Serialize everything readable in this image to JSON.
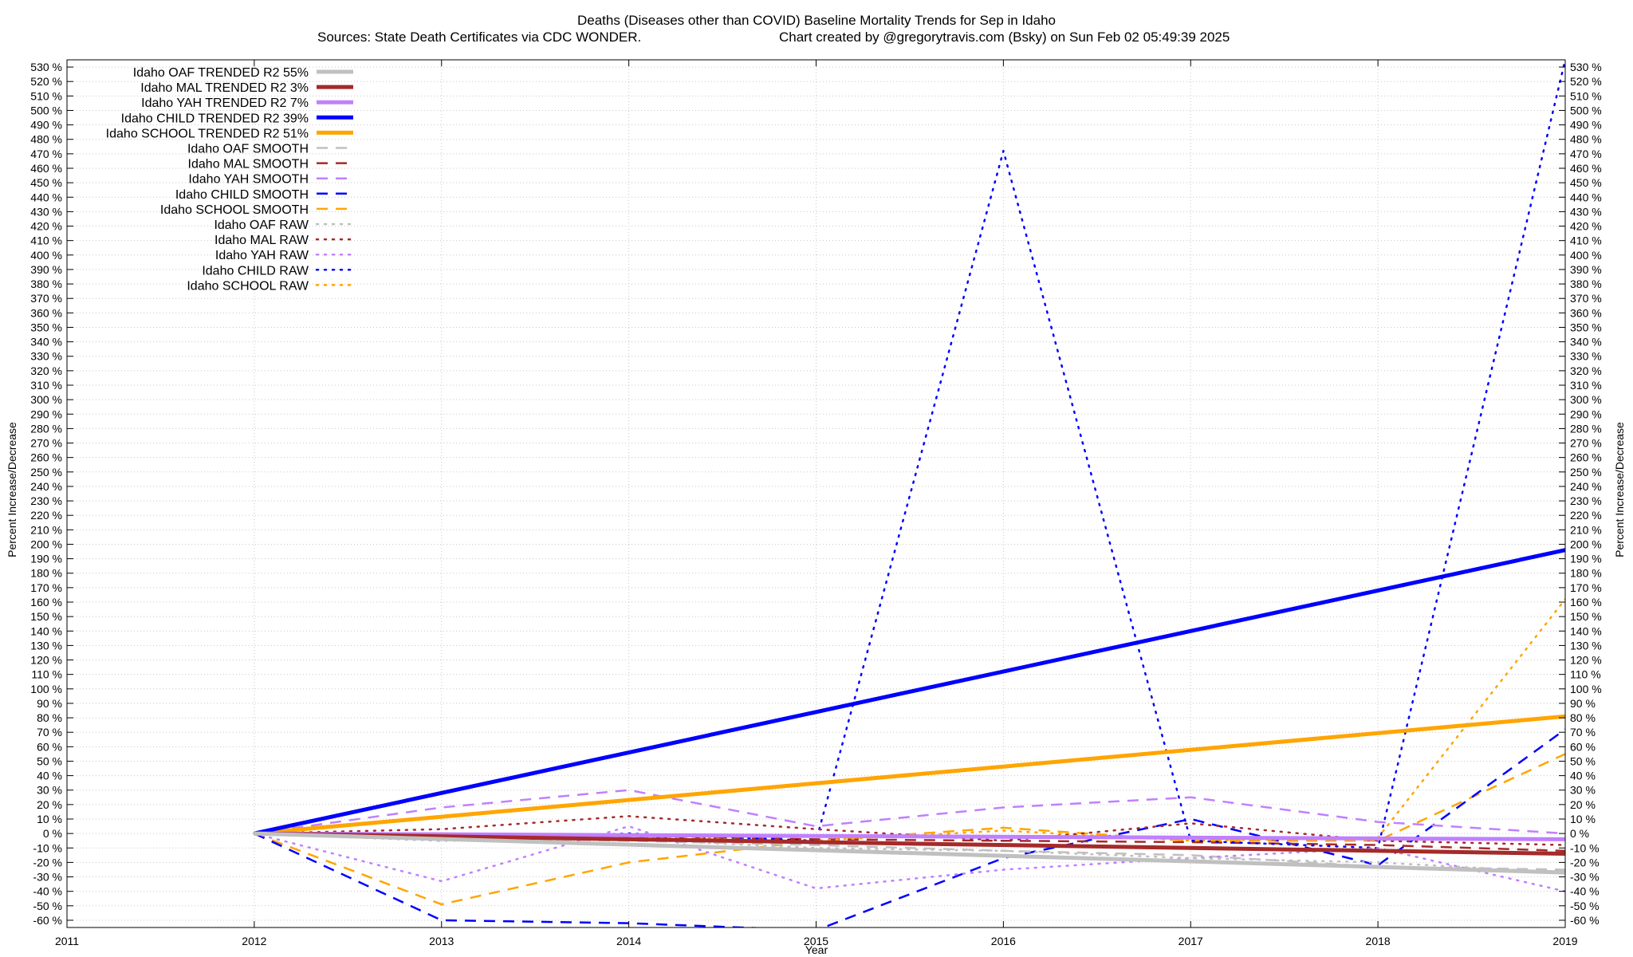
{
  "chart_data": {
    "type": "line",
    "title": "Deaths (Diseases other than COVID)  Baseline Mortality Trends for Sep in Idaho",
    "subtitle_left": "Sources: State Death Certificates via CDC WONDER.",
    "subtitle_right": "Chart created by @gregorytravis.com (Bsky) on Sun Feb 02 05:49:39 2025",
    "xlabel": "Year",
    "ylabel": "Percent Increase/Decrease",
    "ylabel_right": "Percent Increase/Decrease",
    "xlim": [
      2011,
      2019
    ],
    "ylim": [
      -65,
      535
    ],
    "x_ticks": [
      "2011",
      "2012",
      "2013",
      "2014",
      "2015",
      "2016",
      "2017",
      "2018",
      "2019"
    ],
    "y_tick_values": [
      -60,
      -50,
      -40,
      -30,
      -20,
      -10,
      0,
      10,
      20,
      30,
      40,
      50,
      60,
      70,
      80,
      90,
      100,
      110,
      120,
      130,
      140,
      150,
      160,
      170,
      180,
      190,
      200,
      210,
      220,
      230,
      240,
      250,
      260,
      270,
      280,
      290,
      300,
      310,
      320,
      330,
      340,
      350,
      360,
      370,
      380,
      390,
      400,
      410,
      420,
      430,
      440,
      450,
      460,
      470,
      480,
      490,
      500,
      510,
      520,
      530
    ],
    "y_tick_suffix": " %",
    "grid": true,
    "legend_position": "top-left",
    "series": [
      {
        "name": "Idaho OAF TRENDED R2  55%",
        "style": "solid",
        "color": "#c0c0c0",
        "width": 5,
        "x": [
          2012,
          2019
        ],
        "y": [
          0,
          -27
        ]
      },
      {
        "name": "Idaho MAL TRENDED R2   3%",
        "style": "solid",
        "color": "#a52a2a",
        "width": 5,
        "x": [
          2012,
          2019
        ],
        "y": [
          0,
          -14
        ]
      },
      {
        "name": "Idaho YAH TRENDED R2   7%",
        "style": "solid",
        "color": "#c080ff",
        "width": 5,
        "x": [
          2012,
          2019
        ],
        "y": [
          0,
          -4
        ]
      },
      {
        "name": "Idaho CHILD TRENDED R2  39%",
        "style": "solid",
        "color": "#0000ff",
        "width": 5,
        "x": [
          2012,
          2019
        ],
        "y": [
          0,
          196
        ]
      },
      {
        "name": "Idaho SCHOOL TRENDED R2  51%",
        "style": "solid",
        "color": "#ffa500",
        "width": 5,
        "x": [
          2012,
          2019
        ],
        "y": [
          0,
          81
        ]
      },
      {
        "name": "Idaho OAF SMOOTH",
        "style": "dashed",
        "color": "#c0c0c0",
        "width": 2.5,
        "x": [
          2012,
          2013,
          2014,
          2015,
          2016,
          2017,
          2018,
          2019
        ],
        "y": [
          0,
          -3,
          -5,
          -8,
          -12,
          -15,
          -23,
          -25
        ]
      },
      {
        "name": "Idaho MAL SMOOTH",
        "style": "dashed",
        "color": "#a52a2a",
        "width": 2.5,
        "x": [
          2012,
          2013,
          2014,
          2015,
          2016,
          2017,
          2018,
          2019
        ],
        "y": [
          0,
          0,
          -2,
          -4,
          -5,
          -6,
          -8,
          -12
        ]
      },
      {
        "name": "Idaho YAH SMOOTH",
        "style": "dashed",
        "color": "#c080ff",
        "width": 2.5,
        "x": [
          2012,
          2013,
          2014,
          2015,
          2016,
          2017,
          2018,
          2019
        ],
        "y": [
          0,
          18,
          30,
          5,
          18,
          25,
          8,
          0
        ]
      },
      {
        "name": "Idaho CHILD SMOOTH",
        "style": "dashed",
        "color": "#0000ff",
        "width": 2.5,
        "x": [
          2012,
          2013,
          2014,
          2015,
          2016,
          2017,
          2018,
          2019
        ],
        "y": [
          0,
          -60,
          -62,
          -67,
          -17,
          10,
          -22,
          72
        ]
      },
      {
        "name": "Idaho SCHOOL SMOOTH",
        "style": "dashed",
        "color": "#ffa500",
        "width": 2.5,
        "x": [
          2012,
          2013,
          2014,
          2015,
          2016,
          2017,
          2018,
          2019
        ],
        "y": [
          0,
          -49,
          -20,
          -5,
          4,
          -5,
          -5,
          55
        ]
      },
      {
        "name": "Idaho OAF RAW",
        "style": "dotted",
        "color": "#c0c0c0",
        "width": 2.5,
        "x": [
          2012,
          2013,
          2014,
          2015,
          2016,
          2017,
          2018,
          2019
        ],
        "y": [
          0,
          -5,
          -4,
          -10,
          -12,
          -17,
          -20,
          -27
        ]
      },
      {
        "name": "Idaho MAL RAW",
        "style": "dotted",
        "color": "#a52a2a",
        "width": 2.5,
        "x": [
          2012,
          2013,
          2014,
          2015,
          2016,
          2017,
          2018,
          2019
        ],
        "y": [
          0,
          3,
          12,
          3,
          -5,
          7,
          -5,
          -8
        ]
      },
      {
        "name": "Idaho YAH RAW",
        "style": "dotted",
        "color": "#c080ff",
        "width": 2.5,
        "x": [
          2012,
          2013,
          2014,
          2015,
          2016,
          2017,
          2018,
          2019
        ],
        "y": [
          0,
          -33,
          5,
          -38,
          -25,
          -17,
          -10,
          -40
        ]
      },
      {
        "name": "Idaho CHILD RAW",
        "style": "dotted",
        "color": "#0000ff",
        "width": 2.5,
        "x": [
          2012,
          2013,
          2014,
          2015,
          2016,
          2017,
          2018,
          2019
        ],
        "y": [
          0,
          -5,
          0,
          -5,
          472,
          -5,
          -10,
          535
        ]
      },
      {
        "name": "Idaho SCHOOL RAW",
        "style": "dotted",
        "color": "#ffa500",
        "width": 2.5,
        "x": [
          2012,
          2013,
          2014,
          2015,
          2016,
          2017,
          2018,
          2019
        ],
        "y": [
          0,
          0,
          -2,
          -5,
          2,
          -5,
          -3,
          162
        ]
      }
    ]
  }
}
